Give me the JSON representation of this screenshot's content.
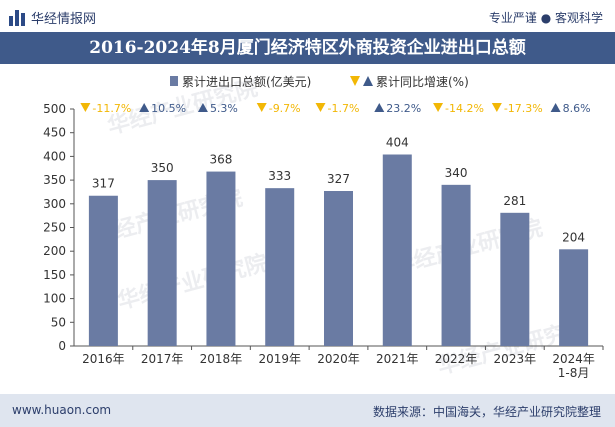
{
  "header": {
    "brand": "华经情报网",
    "right": "专业严谨 ● 客观科学"
  },
  "title": "2016-2024年8月厦门经济特区外商投资企业进出口总额",
  "footer": {
    "website": "www.huaon.com",
    "source": "数据来源：中国海关，华经产业研究院整理"
  },
  "watermark": "华经产业研究院",
  "colors": {
    "bar": "#6a7ba3",
    "title_bg": "#3f5a8a",
    "down": "#f2b705",
    "up": "#3f5a8a"
  },
  "chart_data": {
    "type": "bar",
    "categories": [
      "2016年",
      "2017年",
      "2018年",
      "2019年",
      "2020年",
      "2021年",
      "2022年",
      "2023年",
      "2024年\n1-8月"
    ],
    "series": [
      {
        "name": "累计进出口总额(亿美元)",
        "values": [
          317,
          350,
          368,
          333,
          327,
          404,
          340,
          281,
          204
        ]
      },
      {
        "name": "累计同比增速(%)",
        "values": [
          -11.7,
          10.5,
          5.3,
          -9.7,
          -1.7,
          23.2,
          -14.2,
          -17.3,
          8.6
        ]
      }
    ],
    "growth_labels": [
      "-11.7%",
      "10.5%",
      "5.3%",
      "-9.7%",
      "-1.7%",
      "23.2%",
      "-14.2%",
      "-17.3%",
      "8.6%"
    ],
    "ylim": [
      0,
      500
    ],
    "yticks": [
      0,
      50,
      100,
      150,
      200,
      250,
      300,
      350,
      400,
      450,
      500
    ],
    "legend_position": "top-center"
  }
}
